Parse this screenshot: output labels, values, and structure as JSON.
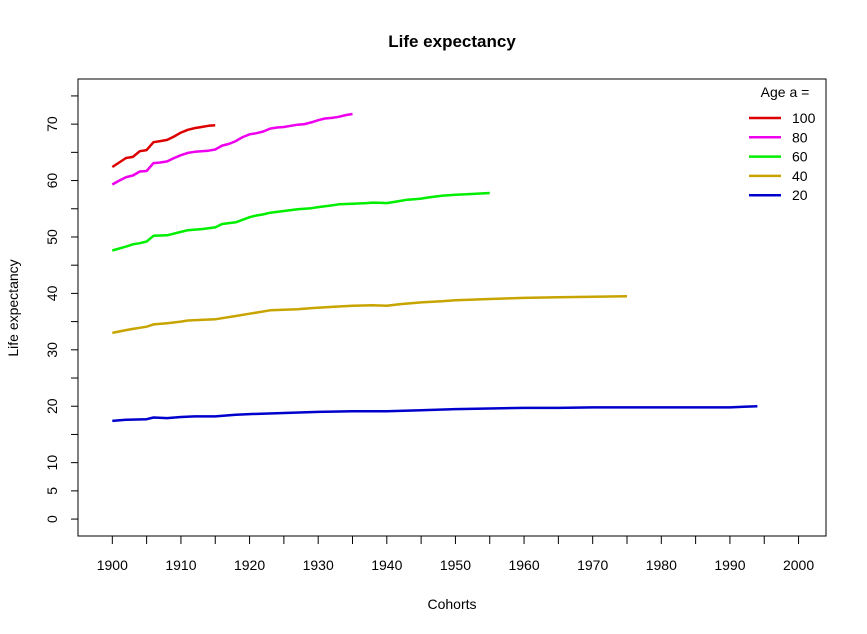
{
  "chart_data": {
    "type": "line",
    "title": "Life expectancy",
    "xlabel": "Cohorts",
    "ylabel": "Life expectancy",
    "xlim": [
      1895,
      2004
    ],
    "ylim": [
      -3,
      78
    ],
    "x_ticks": [
      1900,
      1910,
      1920,
      1930,
      1940,
      1950,
      1960,
      1970,
      1980,
      1990,
      2000
    ],
    "y_tick_labels": [
      0,
      5,
      10,
      20,
      30,
      40,
      50,
      60,
      70
    ],
    "y_minor_ticks": [
      15,
      25,
      35,
      45,
      55,
      65,
      75
    ],
    "x_minor_ticks": [
      1905,
      1915,
      1925,
      1935,
      1945,
      1955,
      1965,
      1975,
      1985,
      1995
    ],
    "grid": false,
    "legend": {
      "title": "Age a =",
      "placement": "top-right"
    },
    "series": [
      {
        "name": "100",
        "color": "#dd0000",
        "x": [
          1900,
          1901,
          1902,
          1903,
          1904,
          1905,
          1906,
          1907,
          1908,
          1909,
          1910,
          1911,
          1912,
          1913,
          1914,
          1915
        ],
        "values": [
          62.4,
          63.2,
          64.0,
          64.2,
          65.2,
          65.4,
          66.8,
          67.0,
          67.2,
          67.8,
          68.5,
          69.0,
          69.3,
          69.5,
          69.7,
          69.8
        ]
      },
      {
        "name": "80",
        "color": "#ee00ee",
        "x": [
          1900,
          1901,
          1902,
          1903,
          1904,
          1905,
          1906,
          1907,
          1908,
          1909,
          1910,
          1911,
          1912,
          1913,
          1914,
          1915,
          1916,
          1917,
          1918,
          1919,
          1920,
          1921,
          1922,
          1923,
          1924,
          1925,
          1926,
          1927,
          1928,
          1929,
          1930,
          1931,
          1932,
          1933,
          1934,
          1935
        ],
        "values": [
          59.3,
          60.0,
          60.6,
          60.9,
          61.6,
          61.7,
          63.1,
          63.2,
          63.4,
          64.0,
          64.5,
          64.9,
          65.1,
          65.2,
          65.3,
          65.5,
          66.2,
          66.5,
          67.0,
          67.7,
          68.2,
          68.4,
          68.7,
          69.2,
          69.4,
          69.5,
          69.7,
          69.9,
          70.0,
          70.3,
          70.7,
          71.0,
          71.1,
          71.3,
          71.6,
          71.8
        ]
      },
      {
        "name": "60",
        "color": "#00ee00",
        "x": [
          1900,
          1902,
          1903,
          1904,
          1905,
          1906,
          1908,
          1910,
          1911,
          1913,
          1915,
          1916,
          1918,
          1920,
          1921,
          1922,
          1923,
          1925,
          1927,
          1929,
          1930,
          1932,
          1933,
          1935,
          1937,
          1938,
          1940,
          1941,
          1942,
          1943,
          1944,
          1945,
          1946,
          1948,
          1950,
          1952,
          1955
        ],
        "values": [
          47.6,
          48.3,
          48.7,
          48.9,
          49.2,
          50.2,
          50.3,
          50.9,
          51.2,
          51.4,
          51.7,
          52.3,
          52.6,
          53.5,
          53.8,
          54.0,
          54.3,
          54.6,
          54.9,
          55.1,
          55.3,
          55.6,
          55.8,
          55.9,
          56.0,
          56.1,
          56.0,
          56.2,
          56.4,
          56.6,
          56.7,
          56.8,
          57.0,
          57.3,
          57.5,
          57.6,
          57.8
        ]
      },
      {
        "name": "40",
        "color": "#c8a400",
        "x": [
          1900,
          1902,
          1903,
          1904,
          1905,
          1906,
          1908,
          1910,
          1911,
          1913,
          1915,
          1916,
          1918,
          1920,
          1921,
          1923,
          1925,
          1927,
          1929,
          1932,
          1935,
          1938,
          1940,
          1942,
          1945,
          1948,
          1950,
          1955,
          1960,
          1965,
          1970,
          1975
        ],
        "values": [
          33.0,
          33.5,
          33.7,
          33.9,
          34.1,
          34.5,
          34.7,
          35.0,
          35.2,
          35.3,
          35.4,
          35.6,
          36.0,
          36.4,
          36.6,
          37.0,
          37.1,
          37.2,
          37.4,
          37.6,
          37.8,
          37.9,
          37.8,
          38.1,
          38.4,
          38.6,
          38.8,
          39.0,
          39.2,
          39.3,
          39.4,
          39.5
        ]
      },
      {
        "name": "20",
        "color": "#0000cc",
        "x": [
          1900,
          1902,
          1905,
          1906,
          1908,
          1910,
          1912,
          1915,
          1918,
          1920,
          1925,
          1930,
          1935,
          1940,
          1945,
          1950,
          1955,
          1960,
          1965,
          1970,
          1975,
          1980,
          1985,
          1990,
          1992,
          1994
        ],
        "values": [
          17.4,
          17.6,
          17.7,
          18.0,
          17.9,
          18.1,
          18.2,
          18.2,
          18.5,
          18.6,
          18.8,
          19.0,
          19.1,
          19.1,
          19.3,
          19.5,
          19.6,
          19.7,
          19.7,
          19.8,
          19.8,
          19.8,
          19.8,
          19.8,
          19.9,
          20.0
        ]
      }
    ]
  }
}
